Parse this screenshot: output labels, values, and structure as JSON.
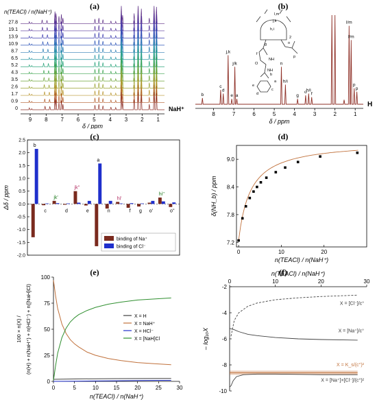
{
  "panels": [
    {
      "label": "(a)",
      "type": "nmr_stack",
      "ylabel_lines": [
        "n(TEACl) / n(NaH⁺)"
      ],
      "stack_labels": [
        "27.8",
        "19.1",
        "13.9",
        "10.9",
        "8.7",
        "6.5",
        "5.2",
        "4.3",
        "3.5",
        "2.6",
        "1.7",
        "0.9",
        "0"
      ],
      "bottom_label": "NaH⁺",
      "xlabel": "δ / ppm",
      "xticks": [
        9,
        8,
        7,
        6,
        5,
        4,
        3,
        2,
        1
      ],
      "xlim": [
        9.6,
        0.6
      ],
      "colors": [
        "#5b2c83",
        "#54339a",
        "#3f3fb0",
        "#2f56b8",
        "#2a7bb4",
        "#2a98a5",
        "#2aa37b",
        "#3ca34f",
        "#6fa43a",
        "#9aa232",
        "#b8952e",
        "#b35c2a",
        "#8e2f26"
      ],
      "peaks": [
        {
          "ppm": 9.05,
          "h": 0.1
        },
        {
          "ppm": 8.9,
          "h": 0.06
        },
        {
          "ppm": 8.25,
          "h": 0.2
        },
        {
          "ppm": 7.95,
          "h": 0.18
        },
        {
          "ppm": 7.45,
          "h": 0.65
        },
        {
          "ppm": 7.38,
          "h": 0.55
        },
        {
          "ppm": 7.2,
          "h": 0.4
        },
        {
          "ppm": 7.05,
          "h": 0.5
        },
        {
          "ppm": 6.95,
          "h": 0.3
        },
        {
          "ppm": 4.95,
          "h": 0.25
        },
        {
          "ppm": 4.7,
          "h": 0.3
        },
        {
          "ppm": 4.45,
          "h": 0.22
        },
        {
          "ppm": 3.95,
          "h": 0.15
        },
        {
          "ppm": 3.65,
          "h": 0.12
        },
        {
          "ppm": 3.3,
          "h": 0.95
        },
        {
          "ppm": 3.22,
          "h": 0.45
        },
        {
          "ppm": 2.5,
          "h": 0.55
        },
        {
          "ppm": 2.25,
          "h": 0.95
        },
        {
          "ppm": 2.05,
          "h": 0.8
        },
        {
          "ppm": 1.55,
          "h": 0.3
        },
        {
          "ppm": 1.25,
          "h": 0.95
        },
        {
          "ppm": 1.1,
          "h": 0.9
        }
      ]
    },
    {
      "label": "(b)",
      "type": "nmr_single",
      "xlabel": "δ / ppm",
      "xticks": [
        8,
        7,
        6,
        5,
        4,
        3,
        2,
        1
      ],
      "xlim": [
        8.9,
        0.6
      ],
      "color": "#8e2f26",
      "right_label": "H",
      "peaks": [
        {
          "ppm": 8.55,
          "h": 0.07,
          "label": "b"
        },
        {
          "ppm": 7.65,
          "h": 0.16,
          "label": "c"
        },
        {
          "ppm": 7.52,
          "h": 0.12,
          "label": "d"
        },
        {
          "ppm": 7.28,
          "h": 0.55,
          "label": "j,k"
        },
        {
          "ppm": 7.1,
          "h": 0.06,
          "label": "e"
        },
        {
          "ppm": 6.95,
          "h": 0.42,
          "label": "j/k"
        },
        {
          "ppm": 6.85,
          "h": 0.06,
          "label": "a"
        },
        {
          "ppm": 4.65,
          "h": 0.42,
          "label": "n"
        },
        {
          "ppm": 4.45,
          "h": 0.22,
          "label": "h/i"
        },
        {
          "ppm": 3.85,
          "h": 0.06,
          "label": "g"
        },
        {
          "ppm": 3.45,
          "h": 0.1,
          "label": "o"
        },
        {
          "ppm": 3.3,
          "h": 0.12,
          "label": "h/i"
        },
        {
          "ppm": 3.15,
          "h": 0.08,
          "label": "f"
        },
        {
          "ppm": 2.15,
          "h": 1.0,
          "label": ""
        },
        {
          "ppm": 2.0,
          "h": 1.0,
          "label": ""
        },
        {
          "ppm": 1.55,
          "h": 0.05,
          "label": ""
        },
        {
          "ppm": 1.3,
          "h": 0.88,
          "label": "l/m"
        },
        {
          "ppm": 1.2,
          "h": 0.72,
          "label": "l/m"
        },
        {
          "ppm": 1.05,
          "h": 0.18,
          "label": "p"
        },
        {
          "ppm": 0.92,
          "h": 0.14,
          "label": "p"
        }
      ],
      "struct_labels": [
        "l,m",
        "j,k",
        "h,i",
        "g",
        "f",
        "NH",
        "O",
        "p",
        "o",
        "NH",
        "e",
        "d",
        "c",
        "a",
        "b",
        "2",
        "2"
      ]
    },
    {
      "label": "(c)",
      "type": "bar",
      "ylabel": "Δδ / ppm",
      "ylim": [
        -2.0,
        2.5
      ],
      "yticks": [
        -2.0,
        -1.5,
        -1.0,
        -0.5,
        0.0,
        0.5,
        1.0,
        1.5,
        2.0,
        2.5
      ],
      "categories": [
        "b",
        "c",
        "jk'",
        "d",
        "jk''",
        "e",
        "a",
        "n",
        "hi'",
        "f",
        "g",
        "o'",
        "hi''",
        "o''"
      ],
      "series": [
        {
          "name": "binding of Na⁺",
          "color": "#7a2a1e",
          "values": [
            -1.3,
            -0.05,
            0.12,
            -0.03,
            0.5,
            -0.06,
            -1.65,
            -0.18,
            0.08,
            -0.15,
            -0.1,
            0.05,
            0.25,
            -0.12
          ]
        },
        {
          "name": "binding of Cl⁻",
          "color": "#1f2fcc",
          "values": [
            2.15,
            0.02,
            0.03,
            0.02,
            0.05,
            0.12,
            1.58,
            0.12,
            0.02,
            0.03,
            0.02,
            0.12,
            0.1,
            0.06
          ]
        }
      ],
      "jk_colors": {
        "jk'": "#1f7a1f",
        "jk''": "#b22a60",
        "hi'": "#b22a60",
        "hi''": "#1f7a1f"
      }
    },
    {
      "label": "(d)",
      "type": "scatter",
      "ylabel": "δ(NH_b) / ppm",
      "xlabel": "n(TEACl) / n(NaH⁺)",
      "xlim": [
        -0.5,
        30
      ],
      "ylim": [
        7.1,
        9.3
      ],
      "xticks": [
        0,
        10,
        20
      ],
      "yticks": [
        7.2,
        7.8,
        8.4,
        9.0
      ],
      "points_x": [
        0,
        0.9,
        1.7,
        2.6,
        3.5,
        4.3,
        5.2,
        6.5,
        8.7,
        10.9,
        13.9,
        19.1,
        27.8
      ],
      "points_y": [
        7.24,
        7.72,
        7.98,
        8.16,
        8.3,
        8.4,
        8.5,
        8.6,
        8.72,
        8.82,
        8.94,
        9.06,
        9.14
      ]
    },
    {
      "label": "(e)",
      "type": "line",
      "ylabel_lines": [
        "100 × n(X) /",
        "(n(H) + n(NaH⁺) + n(HCl⁻) + n([NaH]Cl)"
      ],
      "xlabel": "n(TEACl) / n(NaH⁺)",
      "xlim": [
        0,
        30
      ],
      "ylim": [
        0,
        100
      ],
      "xticks": [
        0,
        5,
        10,
        15,
        20,
        25,
        30
      ],
      "yticks": [
        0,
        25,
        50,
        75,
        100
      ],
      "series": [
        {
          "name": "X = H",
          "color": "#404040",
          "x": [
            0,
            5,
            10,
            15,
            20,
            25,
            28
          ],
          "y": [
            2,
            2.3,
            2.5,
            2.6,
            2.7,
            2.8,
            2.8
          ]
        },
        {
          "name": "X = NaH⁺",
          "color": "#c0703a",
          "x": [
            0,
            0.5,
            1,
            2,
            3,
            4,
            5,
            6,
            8,
            10,
            13,
            16,
            20,
            24,
            28
          ],
          "y": [
            97,
            82,
            70,
            55,
            46,
            40,
            36,
            33,
            28,
            25,
            22,
            20,
            18,
            17,
            16
          ]
        },
        {
          "name": "X = HCl⁻",
          "color": "#1f2fcc",
          "x": [
            0,
            5,
            10,
            15,
            20,
            25,
            28
          ],
          "y": [
            0,
            0.2,
            0.4,
            0.6,
            0.8,
            1,
            1
          ]
        },
        {
          "name": "X = [NaH]Cl",
          "color": "#2f8f2f",
          "x": [
            0,
            0.5,
            1,
            2,
            3,
            4,
            5,
            6,
            8,
            10,
            13,
            16,
            20,
            24,
            28
          ],
          "y": [
            1,
            15,
            27,
            42,
            51,
            57,
            61,
            64,
            68,
            71,
            74,
            76,
            78,
            79,
            80
          ]
        }
      ]
    },
    {
      "label": "(f)",
      "type": "line",
      "ylabel": "– log₁₀X",
      "xlabel": "n(TEACl) / n(NaH⁺)",
      "xlim": [
        0,
        30
      ],
      "ylim": [
        -10,
        -2
      ],
      "xticks": [
        0,
        10,
        20,
        30
      ],
      "yticks": [
        -2,
        -4,
        -6,
        -8,
        -10
      ],
      "series": [
        {
          "name": "X = [Cl⁻]/c°",
          "color": "#404040",
          "dash": "3,2",
          "x": [
            0.3,
            1,
            2,
            4,
            6,
            10,
            15,
            20,
            28
          ],
          "y": [
            -5.8,
            -4.6,
            -4.0,
            -3.5,
            -3.25,
            -3.0,
            -2.85,
            -2.75,
            -2.65
          ]
        },
        {
          "name": "X = [Na⁺]/c°",
          "color": "#404040",
          "dash": "",
          "x": [
            0,
            1,
            2,
            4,
            6,
            10,
            15,
            20,
            28
          ],
          "y": [
            -5.2,
            -5.3,
            -5.45,
            -5.65,
            -5.75,
            -5.9,
            -6.0,
            -6.05,
            -6.1
          ]
        },
        {
          "name": "X = K_s/(c°)²",
          "color": "#c0703a",
          "dash": "",
          "band": true,
          "x": [
            0,
            28
          ],
          "y": [
            -8.6,
            -8.6
          ]
        },
        {
          "name": "X = [Na⁺]×[Cl⁻]/(c°)²",
          "color": "#404040",
          "dash": "",
          "x": [
            0,
            0.3,
            0.8,
            1.5,
            3,
            6,
            10,
            20,
            28
          ],
          "y": [
            -9.7,
            -9.6,
            -9.2,
            -8.9,
            -8.75,
            -8.7,
            -8.7,
            -8.75,
            -8.75
          ]
        }
      ]
    }
  ]
}
